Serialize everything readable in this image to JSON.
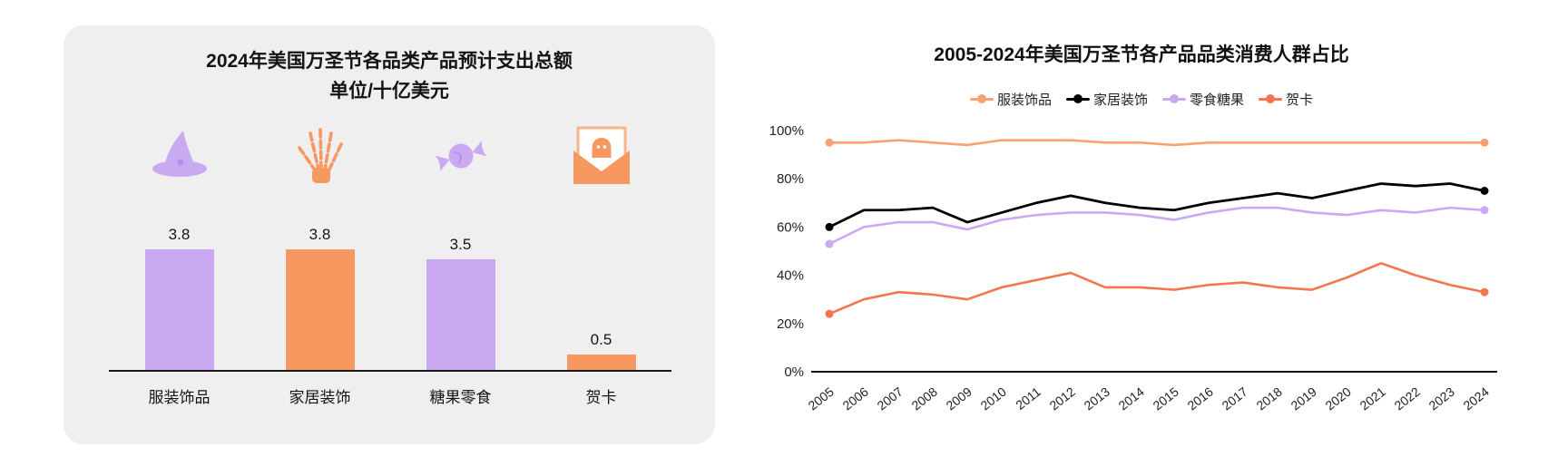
{
  "chart_data": [
    {
      "type": "bar",
      "title": "2024年美国万圣节各品类产品预计支出总额",
      "subtitle": "单位/十亿美元",
      "categories": [
        "服装饰品",
        "家居装饰",
        "糖果零食",
        "贺卡"
      ],
      "values": [
        3.8,
        3.8,
        3.5,
        0.5
      ],
      "bar_colors": [
        "#c9a9f2",
        "#f79861",
        "#c9a9f2",
        "#f79861"
      ],
      "icons": [
        "witch-hat",
        "skeleton-hand",
        "candy",
        "greeting-card"
      ],
      "ylim": [
        0,
        4.2
      ],
      "grid": false
    },
    {
      "type": "line",
      "title": "2005-2024年美国万圣节各产品品类消费人群占比",
      "x": [
        2005,
        2006,
        2007,
        2008,
        2009,
        2010,
        2011,
        2012,
        2013,
        2014,
        2015,
        2016,
        2017,
        2018,
        2019,
        2020,
        2021,
        2022,
        2023,
        2024
      ],
      "y_ticks": [
        "0%",
        "20%",
        "40%",
        "60%",
        "80%",
        "100%"
      ],
      "ylim": [
        0,
        100
      ],
      "legend_position": "top",
      "grid": false,
      "series": [
        {
          "name": "服装饰品",
          "color": "#f8a272",
          "values": [
            95,
            95,
            96,
            95,
            94,
            96,
            96,
            96,
            95,
            95,
            94,
            95,
            95,
            95,
            95,
            95,
            95,
            95,
            95,
            95
          ]
        },
        {
          "name": "家居装饰",
          "color": "#000000",
          "values": [
            60,
            67,
            67,
            68,
            62,
            66,
            70,
            73,
            70,
            68,
            67,
            70,
            72,
            74,
            72,
            75,
            78,
            77,
            78,
            75
          ]
        },
        {
          "name": "零食糖果",
          "color": "#c9a9f2",
          "values": [
            53,
            60,
            62,
            62,
            59,
            63,
            65,
            66,
            66,
            65,
            63,
            66,
            68,
            68,
            66,
            65,
            67,
            66,
            68,
            67
          ]
        },
        {
          "name": "贺卡",
          "color": "#f4764e",
          "values": [
            24,
            30,
            33,
            32,
            30,
            35,
            38,
            41,
            35,
            35,
            34,
            36,
            37,
            35,
            34,
            39,
            45,
            40,
            36,
            33
          ]
        }
      ]
    }
  ]
}
